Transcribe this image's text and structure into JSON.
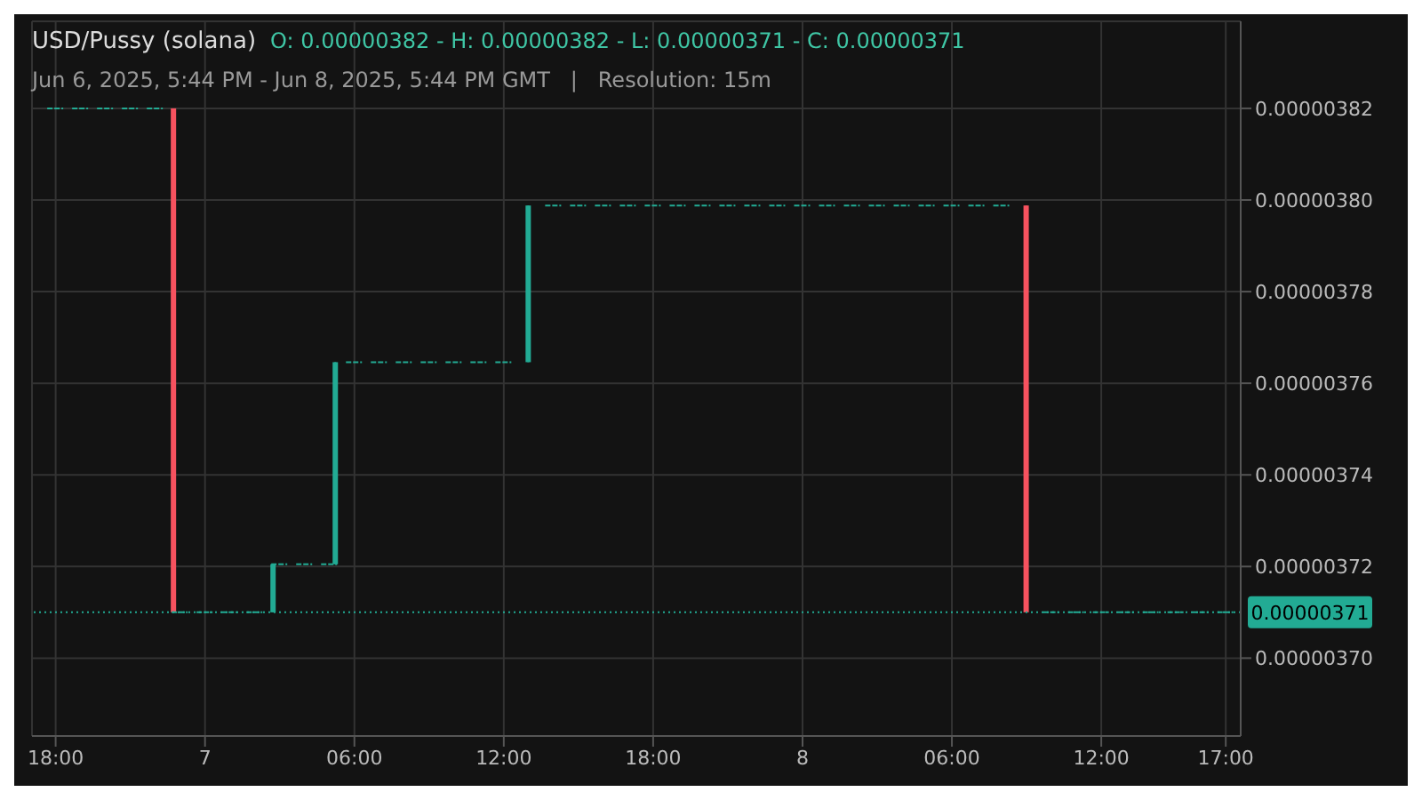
{
  "chart_data": {
    "type": "candlestick",
    "title": "USD/Pussy (solana)",
    "subtitle": "O: 0.00000382 - H: 0.00000382 - L: 0.00000371 - C: 0.00000371",
    "annotations": [
      "Jun 6, 2025, 5:44 PM - Jun 8, 2025, 5:44 PM GMT   |   Resolution: 15m"
    ],
    "x": [
      "2025-06-06T18:00",
      "2025-06-06T19:00",
      "2025-06-06T20:00",
      "2025-06-06T21:00",
      "2025-06-06T22:00",
      "2025-06-06T22:45",
      "2025-06-06T23:00",
      "2025-06-07T00:00",
      "2025-06-07T01:00",
      "2025-06-07T02:00",
      "2025-06-07T02:45",
      "2025-06-07T03:00",
      "2025-06-07T04:00",
      "2025-06-07T05:00",
      "2025-06-07T05:15",
      "2025-06-07T06:00",
      "2025-06-07T07:00",
      "2025-06-07T08:00",
      "2025-06-07T09:00",
      "2025-06-07T10:00",
      "2025-06-07T11:00",
      "2025-06-07T12:00",
      "2025-06-07T13:00",
      "2025-06-07T14:00",
      "2025-06-07T15:00",
      "2025-06-07T16:00",
      "2025-06-07T17:00",
      "2025-06-07T18:00",
      "2025-06-07T19:00",
      "2025-06-07T20:00",
      "2025-06-07T21:00",
      "2025-06-07T22:00",
      "2025-06-07T23:00",
      "2025-06-08T00:00",
      "2025-06-08T01:00",
      "2025-06-08T02:00",
      "2025-06-08T03:00",
      "2025-06-08T04:00",
      "2025-06-08T05:00",
      "2025-06-08T06:00",
      "2025-06-08T07:00",
      "2025-06-08T08:00",
      "2025-06-08T09:00",
      "2025-06-08T10:00",
      "2025-06-08T11:00",
      "2025-06-08T12:00",
      "2025-06-08T13:00",
      "2025-06-08T14:00",
      "2025-06-08T15:00",
      "2025-06-08T16:00",
      "2025-06-08T17:00"
    ],
    "ohlc": [
      [
        3.82e-06,
        3.82e-06,
        3.82e-06,
        3.82e-06
      ],
      [
        3.82e-06,
        3.82e-06,
        3.82e-06,
        3.82e-06
      ],
      [
        3.82e-06,
        3.82e-06,
        3.82e-06,
        3.82e-06
      ],
      [
        3.82e-06,
        3.82e-06,
        3.82e-06,
        3.82e-06
      ],
      [
        3.82e-06,
        3.82e-06,
        3.82e-06,
        3.82e-06
      ],
      [
        3.82e-06,
        3.82e-06,
        3.71e-06,
        3.71e-06
      ],
      [
        3.71e-06,
        3.71e-06,
        3.71e-06,
        3.71e-06
      ],
      [
        3.71e-06,
        3.71e-06,
        3.71e-06,
        3.71e-06
      ],
      [
        3.71e-06,
        3.71e-06,
        3.71e-06,
        3.71e-06
      ],
      [
        3.71e-06,
        3.71e-06,
        3.71e-06,
        3.71e-06
      ],
      [
        3.71e-06,
        3.7205e-06,
        3.71e-06,
        3.7205e-06
      ],
      [
        3.7205e-06,
        3.7205e-06,
        3.7205e-06,
        3.7205e-06
      ],
      [
        3.7205e-06,
        3.7205e-06,
        3.7205e-06,
        3.7205e-06
      ],
      [
        3.7205e-06,
        3.7205e-06,
        3.7205e-06,
        3.7205e-06
      ],
      [
        3.7205e-06,
        3.7646e-06,
        3.7205e-06,
        3.7646e-06
      ],
      [
        3.7646e-06,
        3.7646e-06,
        3.7646e-06,
        3.7646e-06
      ],
      [
        3.7646e-06,
        3.7646e-06,
        3.7646e-06,
        3.7646e-06
      ],
      [
        3.7646e-06,
        3.7646e-06,
        3.7646e-06,
        3.7646e-06
      ],
      [
        3.7646e-06,
        3.7646e-06,
        3.7646e-06,
        3.7646e-06
      ],
      [
        3.7646e-06,
        3.7646e-06,
        3.7646e-06,
        3.7646e-06
      ],
      [
        3.7646e-06,
        3.7646e-06,
        3.7646e-06,
        3.7646e-06
      ],
      [
        3.7646e-06,
        3.7646e-06,
        3.7646e-06,
        3.7646e-06
      ],
      [
        3.7646e-06,
        3.7988e-06,
        3.7646e-06,
        3.7988e-06
      ],
      [
        3.7988e-06,
        3.7988e-06,
        3.7988e-06,
        3.7988e-06
      ],
      [
        3.7988e-06,
        3.7988e-06,
        3.7988e-06,
        3.7988e-06
      ],
      [
        3.7988e-06,
        3.7988e-06,
        3.7988e-06,
        3.7988e-06
      ],
      [
        3.7988e-06,
        3.7988e-06,
        3.7988e-06,
        3.7988e-06
      ],
      [
        3.7988e-06,
        3.7988e-06,
        3.7988e-06,
        3.7988e-06
      ],
      [
        3.7988e-06,
        3.7988e-06,
        3.7988e-06,
        3.7988e-06
      ],
      [
        3.7988e-06,
        3.7988e-06,
        3.7988e-06,
        3.7988e-06
      ],
      [
        3.7988e-06,
        3.7988e-06,
        3.7988e-06,
        3.7988e-06
      ],
      [
        3.7988e-06,
        3.7988e-06,
        3.7988e-06,
        3.7988e-06
      ],
      [
        3.7988e-06,
        3.7988e-06,
        3.7988e-06,
        3.7988e-06
      ],
      [
        3.7988e-06,
        3.7988e-06,
        3.7988e-06,
        3.7988e-06
      ],
      [
        3.7988e-06,
        3.7988e-06,
        3.7988e-06,
        3.7988e-06
      ],
      [
        3.7988e-06,
        3.7988e-06,
        3.7988e-06,
        3.7988e-06
      ],
      [
        3.7988e-06,
        3.7988e-06,
        3.7988e-06,
        3.7988e-06
      ],
      [
        3.7988e-06,
        3.7988e-06,
        3.7988e-06,
        3.7988e-06
      ],
      [
        3.7988e-06,
        3.7988e-06,
        3.7988e-06,
        3.7988e-06
      ],
      [
        3.7988e-06,
        3.7988e-06,
        3.7988e-06,
        3.7988e-06
      ],
      [
        3.7988e-06,
        3.7988e-06,
        3.7988e-06,
        3.7988e-06
      ],
      [
        3.7988e-06,
        3.7988e-06,
        3.7988e-06,
        3.7988e-06
      ],
      [
        3.7988e-06,
        3.7988e-06,
        3.71e-06,
        3.71e-06
      ],
      [
        3.71e-06,
        3.71e-06,
        3.71e-06,
        3.71e-06
      ],
      [
        3.71e-06,
        3.71e-06,
        3.71e-06,
        3.71e-06
      ],
      [
        3.71e-06,
        3.71e-06,
        3.71e-06,
        3.71e-06
      ],
      [
        3.71e-06,
        3.71e-06,
        3.71e-06,
        3.71e-06
      ],
      [
        3.71e-06,
        3.71e-06,
        3.71e-06,
        3.71e-06
      ],
      [
        3.71e-06,
        3.71e-06,
        3.71e-06,
        3.71e-06
      ],
      [
        3.71e-06,
        3.71e-06,
        3.71e-06,
        3.71e-06
      ],
      [
        3.71e-06,
        3.71e-06,
        3.71e-06,
        3.71e-06
      ]
    ],
    "colors": [
      "#22ab94",
      "#22ab94",
      "#22ab94",
      "#22ab94",
      "#22ab94",
      "#f7525f",
      "#22ab94",
      "#22ab94",
      "#22ab94",
      "#22ab94",
      "#22ab94",
      "#22ab94",
      "#22ab94",
      "#22ab94",
      "#22ab94",
      "#22ab94",
      "#22ab94",
      "#22ab94",
      "#22ab94",
      "#22ab94",
      "#22ab94",
      "#22ab94",
      "#22ab94",
      "#22ab94",
      "#22ab94",
      "#22ab94",
      "#22ab94",
      "#22ab94",
      "#22ab94",
      "#22ab94",
      "#22ab94",
      "#22ab94",
      "#22ab94",
      "#22ab94",
      "#22ab94",
      "#22ab94",
      "#22ab94",
      "#22ab94",
      "#22ab94",
      "#22ab94",
      "#22ab94",
      "#22ab94",
      "#f7525f",
      "#22ab94",
      "#22ab94",
      "#22ab94",
      "#22ab94",
      "#22ab94",
      "#22ab94",
      "#22ab94",
      "#22ab94"
    ],
    "xlim": [
      "2025-06-06T17:03",
      "2025-06-08T17:36"
    ],
    "xticks": [
      {
        "value": "2025-06-06T18:00",
        "label": "18:00"
      },
      {
        "value": "2025-06-07T00:00",
        "label": "7"
      },
      {
        "value": "2025-06-07T06:00",
        "label": "06:00"
      },
      {
        "value": "2025-06-07T12:00",
        "label": "12:00"
      },
      {
        "value": "2025-06-07T18:00",
        "label": "18:00"
      },
      {
        "value": "2025-06-08T00:00",
        "label": "8"
      },
      {
        "value": "2025-06-08T06:00",
        "label": "06:00"
      },
      {
        "value": "2025-06-08T12:00",
        "label": "12:00"
      },
      {
        "value": "2025-06-08T17:00",
        "label": "17:00"
      }
    ],
    "ylim": [
      3.683e-06,
      3.839e-06
    ],
    "yticks": [
      {
        "value": 3.7e-06,
        "label": "0.00000370"
      },
      {
        "value": 3.72e-06,
        "label": "0.00000372"
      },
      {
        "value": 3.74e-06,
        "label": "0.00000374"
      },
      {
        "value": 3.76e-06,
        "label": "0.00000376"
      },
      {
        "value": 3.78e-06,
        "label": "0.00000378"
      },
      {
        "value": 3.8e-06,
        "label": "0.00000380"
      },
      {
        "value": 3.82e-06,
        "label": "0.00000382"
      }
    ],
    "ref_lines": [
      {
        "axis": "y",
        "value": 3.71e-06,
        "label": "0.00000371",
        "color": "#22ab94",
        "line_style": "dotted"
      }
    ],
    "grid": true
  }
}
